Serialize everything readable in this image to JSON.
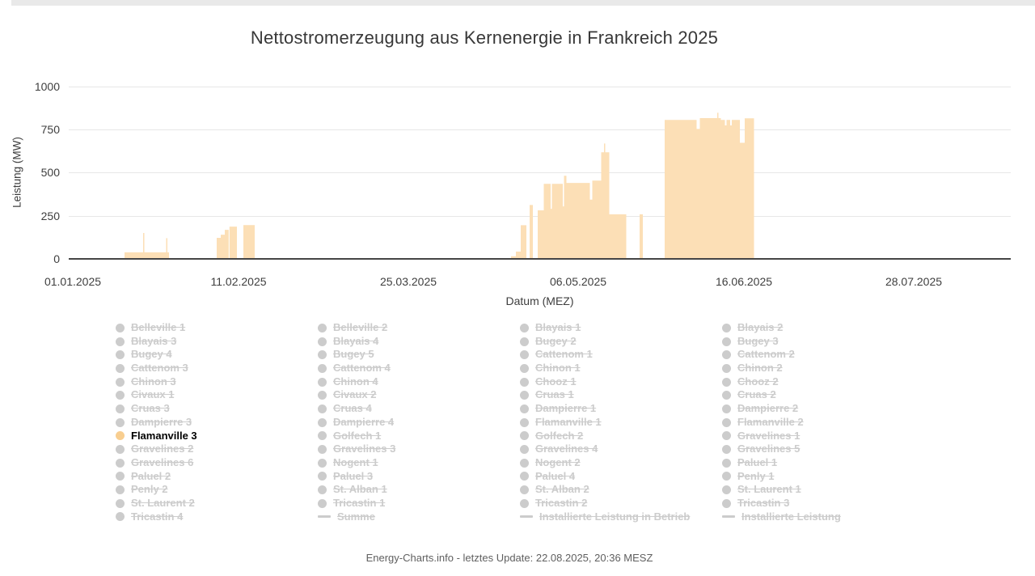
{
  "page": {
    "title": "Nettostromerzeugung aus Kernenergie in Frankreich 2025",
    "footer": "Energy-Charts.info - letztes Update: 22.08.2025, 20:36 MESZ"
  },
  "colors": {
    "area_fill": "#fcdfb6",
    "active_marker": "#f8ce90",
    "disabled": "#cccccc",
    "grid": "#e7e7e7",
    "axis_line": "#454545",
    "axis_text": "#3e3e3e",
    "title_text": "#383838",
    "footer_text": "#5f5f5f",
    "top_bar": "#e9e9e9"
  },
  "chart_data": {
    "type": "area",
    "title": "Nettostromerzeugung aus Kernenergie in Frankreich 2025",
    "xlabel": "Datum (MEZ)",
    "ylabel": "Leistung (MW)",
    "unit": "MW",
    "ylim": [
      0,
      1000
    ],
    "yticks": [
      0,
      250,
      500,
      750,
      1000
    ],
    "grid": "horizontal-only",
    "x_ticks": [
      {
        "label": "01.01.2025",
        "day": 0
      },
      {
        "label": "11.02.2025",
        "day": 41
      },
      {
        "label": "25.03.2025",
        "day": 83
      },
      {
        "label": "06.05.2025",
        "day": 125
      },
      {
        "label": "16.06.2025",
        "day": 166
      },
      {
        "label": "28.07.2025",
        "day": 208
      }
    ],
    "x_range_days": [
      -1,
      232
    ],
    "visible_series": "Flamanville 3",
    "legend_position": "bottom",
    "series": [
      {
        "name": "Flamanville 3",
        "type": "area",
        "color": "#f8ce90",
        "note": "segments = [start_day, end_day, MW]; day counted from 01.01.2025; output is 0 MW between segments",
        "segments": [
          [
            12.8,
            17.4,
            38
          ],
          [
            17.4,
            17.7,
            150
          ],
          [
            17.7,
            23.1,
            38
          ],
          [
            23.1,
            23.4,
            120
          ],
          [
            23.4,
            23.8,
            38
          ],
          [
            35.6,
            36.6,
            122
          ],
          [
            36.6,
            37.6,
            140
          ],
          [
            37.6,
            38.55,
            168
          ],
          [
            38.75,
            40.6,
            187
          ],
          [
            42.2,
            45.0,
            196
          ],
          [
            108.4,
            109.6,
            15
          ],
          [
            109.6,
            110.8,
            42
          ],
          [
            110.8,
            112.2,
            195
          ],
          [
            113.0,
            113.8,
            312
          ],
          [
            115.0,
            116.5,
            281
          ],
          [
            116.5,
            118.2,
            434
          ],
          [
            118.2,
            118.5,
            290
          ],
          [
            118.5,
            121.2,
            434
          ],
          [
            121.2,
            121.5,
            304
          ],
          [
            121.5,
            122.1,
            481
          ],
          [
            122.1,
            127.9,
            440
          ],
          [
            127.9,
            128.5,
            343
          ],
          [
            128.5,
            130.7,
            453
          ],
          [
            130.7,
            131.4,
            617
          ],
          [
            131.4,
            131.7,
            668
          ],
          [
            131.7,
            132.7,
            617
          ],
          [
            132.7,
            136.9,
            258
          ],
          [
            140.2,
            141.0,
            258
          ],
          [
            146.4,
            154.3,
            804
          ],
          [
            154.3,
            155.1,
            752
          ],
          [
            155.1,
            159.4,
            815
          ],
          [
            159.4,
            159.7,
            846
          ],
          [
            159.7,
            160.3,
            815
          ],
          [
            160.3,
            161.3,
            804
          ],
          [
            161.3,
            161.7,
            773
          ],
          [
            161.7,
            162.6,
            804
          ],
          [
            162.6,
            163.0,
            773
          ],
          [
            163.0,
            165.0,
            804
          ],
          [
            165.0,
            166.2,
            672
          ],
          [
            166.2,
            168.5,
            814
          ]
        ]
      }
    ]
  },
  "legend": {
    "columns": [
      [
        {
          "label": "Belleville 1",
          "marker": "dot"
        },
        {
          "label": "Blayais 3",
          "marker": "dot"
        },
        {
          "label": "Bugey 4",
          "marker": "dot"
        },
        {
          "label": "Cattenom 3",
          "marker": "dot"
        },
        {
          "label": "Chinon 3",
          "marker": "dot"
        },
        {
          "label": "Civaux 1",
          "marker": "dot"
        },
        {
          "label": "Cruas 3",
          "marker": "dot"
        },
        {
          "label": "Dampierre 3",
          "marker": "dot"
        },
        {
          "label": "Flamanville 3",
          "marker": "dot",
          "active": true
        },
        {
          "label": "Gravelines 2",
          "marker": "dot"
        },
        {
          "label": "Gravelines 6",
          "marker": "dot"
        },
        {
          "label": "Paluel 2",
          "marker": "dot"
        },
        {
          "label": "Penly 2",
          "marker": "dot"
        },
        {
          "label": "St. Laurent 2",
          "marker": "dot"
        },
        {
          "label": "Tricastin 4",
          "marker": "dot"
        }
      ],
      [
        {
          "label": "Belleville 2",
          "marker": "dot"
        },
        {
          "label": "Blayais 4",
          "marker": "dot"
        },
        {
          "label": "Bugey 5",
          "marker": "dot"
        },
        {
          "label": "Cattenom 4",
          "marker": "dot"
        },
        {
          "label": "Chinon 4",
          "marker": "dot"
        },
        {
          "label": "Civaux 2",
          "marker": "dot"
        },
        {
          "label": "Cruas 4",
          "marker": "dot"
        },
        {
          "label": "Dampierre 4",
          "marker": "dot"
        },
        {
          "label": "Golfech 1",
          "marker": "dot"
        },
        {
          "label": "Gravelines 3",
          "marker": "dot"
        },
        {
          "label": "Nogent 1",
          "marker": "dot"
        },
        {
          "label": "Paluel 3",
          "marker": "dot"
        },
        {
          "label": "St. Alban 1",
          "marker": "dot"
        },
        {
          "label": "Tricastin 1",
          "marker": "dot"
        },
        {
          "label": "Summe",
          "marker": "line"
        }
      ],
      [
        {
          "label": "Blayais 1",
          "marker": "dot"
        },
        {
          "label": "Bugey 2",
          "marker": "dot"
        },
        {
          "label": "Cattenom 1",
          "marker": "dot"
        },
        {
          "label": "Chinon 1",
          "marker": "dot"
        },
        {
          "label": "Chooz 1",
          "marker": "dot"
        },
        {
          "label": "Cruas 1",
          "marker": "dot"
        },
        {
          "label": "Dampierre 1",
          "marker": "dot"
        },
        {
          "label": "Flamanville 1",
          "marker": "dot"
        },
        {
          "label": "Golfech 2",
          "marker": "dot"
        },
        {
          "label": "Gravelines 4",
          "marker": "dot"
        },
        {
          "label": "Nogent 2",
          "marker": "dot"
        },
        {
          "label": "Paluel 4",
          "marker": "dot"
        },
        {
          "label": "St. Alban 2",
          "marker": "dot"
        },
        {
          "label": "Tricastin 2",
          "marker": "dot"
        },
        {
          "label": "Installierte Leistung in Betrieb",
          "marker": "line"
        }
      ],
      [
        {
          "label": "Blayais 2",
          "marker": "dot"
        },
        {
          "label": "Bugey 3",
          "marker": "dot"
        },
        {
          "label": "Cattenom 2",
          "marker": "dot"
        },
        {
          "label": "Chinon 2",
          "marker": "dot"
        },
        {
          "label": "Chooz 2",
          "marker": "dot"
        },
        {
          "label": "Cruas 2",
          "marker": "dot"
        },
        {
          "label": "Dampierre 2",
          "marker": "dot"
        },
        {
          "label": "Flamanville 2",
          "marker": "dot"
        },
        {
          "label": "Gravelines 1",
          "marker": "dot"
        },
        {
          "label": "Gravelines 5",
          "marker": "dot"
        },
        {
          "label": "Paluel 1",
          "marker": "dot"
        },
        {
          "label": "Penly 1",
          "marker": "dot"
        },
        {
          "label": "St. Laurent 1",
          "marker": "dot"
        },
        {
          "label": "Tricastin 3",
          "marker": "dot"
        },
        {
          "label": "Installierte Leistung",
          "marker": "line"
        }
      ]
    ]
  }
}
